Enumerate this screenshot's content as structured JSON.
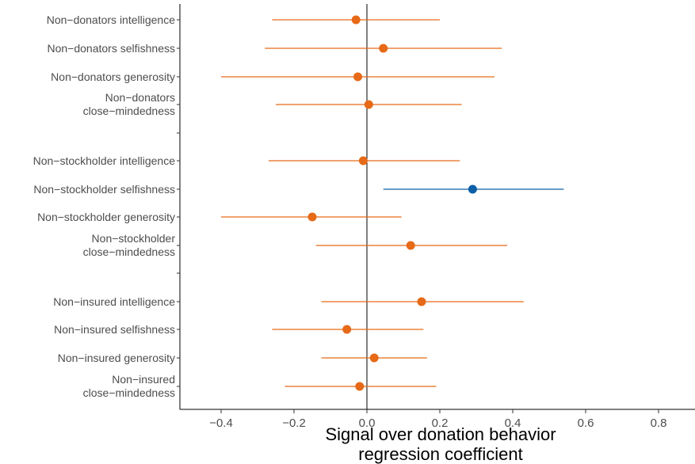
{
  "chart_data": {
    "type": "scatter",
    "subtype": "coefficient-plot-with-confidence-intervals",
    "xlabel_line1": "Signal over donation behavior",
    "xlabel_line2": "regression coefficient",
    "xlim": [
      -0.5,
      0.9
    ],
    "xticks": [
      -0.4,
      -0.2,
      0.0,
      0.2,
      0.4,
      0.6,
      0.8
    ],
    "xtick_labels": [
      "−0.4",
      "−0.2",
      "0.0",
      "0.2",
      "0.4",
      "0.6",
      "0.8"
    ],
    "reference_line_x": 0,
    "grid": false,
    "colors": {
      "default": "#E66A17",
      "significant": "#0D5FA6",
      "axis": "#000000"
    },
    "points": [
      {
        "lines": [
          "Non−donators intelligence"
        ],
        "estimate": -0.03,
        "ci_low": -0.26,
        "ci_high": 0.2,
        "significant": false
      },
      {
        "lines": [
          "Non−donators selfishness"
        ],
        "estimate": 0.045,
        "ci_low": -0.28,
        "ci_high": 0.37,
        "significant": false
      },
      {
        "lines": [
          "Non−donators generosity"
        ],
        "estimate": -0.025,
        "ci_low": -0.4,
        "ci_high": 0.35,
        "significant": false
      },
      {
        "lines": [
          "Non−donators",
          "close−mindedness"
        ],
        "estimate": 0.005,
        "ci_low": -0.25,
        "ci_high": 0.26,
        "significant": false
      },
      {
        "lines": [
          "Non−stockholder intelligence"
        ],
        "estimate": -0.01,
        "ci_low": -0.27,
        "ci_high": 0.255,
        "significant": false
      },
      {
        "lines": [
          "Non−stockholder selfishness"
        ],
        "estimate": 0.29,
        "ci_low": 0.045,
        "ci_high": 0.54,
        "significant": true
      },
      {
        "lines": [
          "Non−stockholder generosity"
        ],
        "estimate": -0.15,
        "ci_low": -0.4,
        "ci_high": 0.095,
        "significant": false
      },
      {
        "lines": [
          "Non−stockholder",
          "close−mindedness"
        ],
        "estimate": 0.12,
        "ci_low": -0.14,
        "ci_high": 0.385,
        "significant": false
      },
      {
        "lines": [
          "Non−insured intelligence"
        ],
        "estimate": 0.15,
        "ci_low": -0.125,
        "ci_high": 0.43,
        "significant": false
      },
      {
        "lines": [
          "Non−insured selfishness"
        ],
        "estimate": -0.055,
        "ci_low": -0.26,
        "ci_high": 0.155,
        "significant": false
      },
      {
        "lines": [
          "Non−insured generosity"
        ],
        "estimate": 0.02,
        "ci_low": -0.125,
        "ci_high": 0.165,
        "significant": false
      },
      {
        "lines": [
          "Non−insured",
          "close−mindedness"
        ],
        "estimate": -0.02,
        "ci_low": -0.225,
        "ci_high": 0.19,
        "significant": false
      }
    ]
  }
}
